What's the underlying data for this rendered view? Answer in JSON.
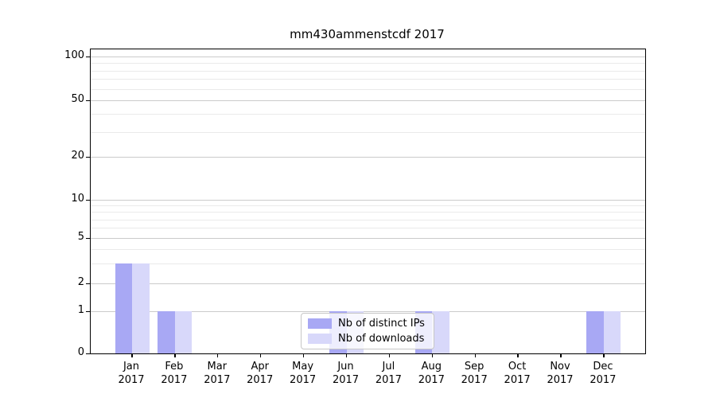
{
  "chart_data": {
    "type": "bar",
    "title": "mm430ammenstcdf 2017",
    "categories": [
      "Jan",
      "Feb",
      "Mar",
      "Apr",
      "May",
      "Jun",
      "Jul",
      "Aug",
      "Sep",
      "Oct",
      "Nov",
      "Dec"
    ],
    "year": "2017",
    "series": [
      {
        "name": "Nb of distinct IPs",
        "color": "#a8a8f4",
        "values": [
          3,
          1,
          0,
          0,
          0,
          1,
          0,
          1,
          0,
          0,
          0,
          1
        ]
      },
      {
        "name": "Nb of downloads",
        "color": "#d8d8fa",
        "values": [
          3,
          1,
          0,
          0,
          0,
          1,
          0,
          1,
          0,
          0,
          0,
          1
        ]
      }
    ],
    "y_axis": {
      "scale": "log",
      "major_ticks": [
        0,
        1,
        2,
        5,
        10,
        20,
        50,
        100
      ],
      "minor_ticks": [
        3,
        4,
        6,
        7,
        8,
        9,
        30,
        40,
        60,
        70,
        80,
        90
      ],
      "ylim": [
        0,
        115
      ]
    },
    "xlabel": "",
    "ylabel": "",
    "grid": "horizontal",
    "legend_position": "lower center"
  },
  "colors": {
    "bar_distinct_ips": "#a8a8f4",
    "bar_downloads": "#d8d8fa",
    "grid_major": "#cbcbcb",
    "grid_minor": "#eaeaea",
    "spine": "#000000",
    "legend_border": "#c7c7c7",
    "legend_bg": "rgba(255,255,255,0.8)",
    "text": "#000000"
  }
}
